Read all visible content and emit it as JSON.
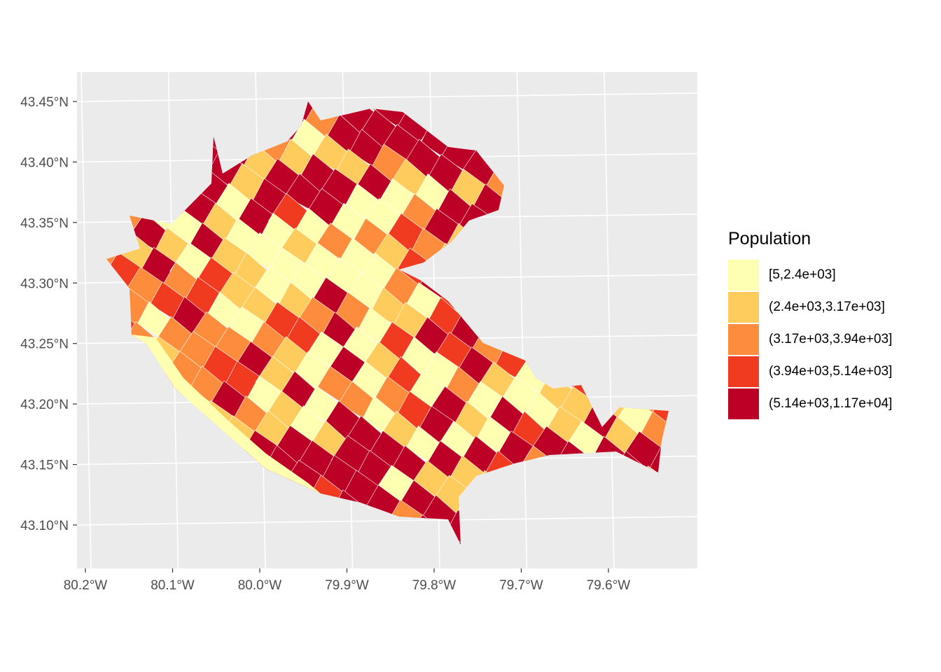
{
  "map": {
    "type": "choropleth",
    "region_area": {
      "lon_min": -80.15,
      "lon_max": -79.545,
      "lat_min": 43.083,
      "lat_max": 43.448
    },
    "background_color": "#EBEBEB",
    "gridline_color": "#FFFFFF",
    "x_ticks": [
      {
        "value": -80.2,
        "label": "80.2°W"
      },
      {
        "value": -80.1,
        "label": "80.1°W"
      },
      {
        "value": -80.0,
        "label": "80.0°W"
      },
      {
        "value": -79.9,
        "label": "79.9°W"
      },
      {
        "value": -79.8,
        "label": "79.8°W"
      },
      {
        "value": -79.7,
        "label": "79.7°W"
      },
      {
        "value": -79.6,
        "label": "79.6°W"
      }
    ],
    "y_ticks": [
      {
        "value": 43.45,
        "label": "43.45°N"
      },
      {
        "value": 43.4,
        "label": "43.40°N"
      },
      {
        "value": 43.35,
        "label": "43.35°N"
      },
      {
        "value": 43.3,
        "label": "43.30°N"
      },
      {
        "value": 43.25,
        "label": "43.25°N"
      },
      {
        "value": 43.2,
        "label": "43.20°N"
      },
      {
        "value": 43.15,
        "label": "43.15°N"
      },
      {
        "value": 43.1,
        "label": "43.10°N"
      }
    ]
  },
  "legend": {
    "title": "Population",
    "items": [
      {
        "label": "[5,2.4e+03]",
        "color": "#FFFFB2"
      },
      {
        "label": "(2.4e+03,3.17e+03]",
        "color": "#FECC5C"
      },
      {
        "label": "(3.17e+03,3.94e+03]",
        "color": "#FD8D3C"
      },
      {
        "label": "(3.94e+03,5.14e+03]",
        "color": "#F03B20"
      },
      {
        "label": "(5.14e+03,1.17e+04]",
        "color": "#BD0026"
      }
    ]
  }
}
